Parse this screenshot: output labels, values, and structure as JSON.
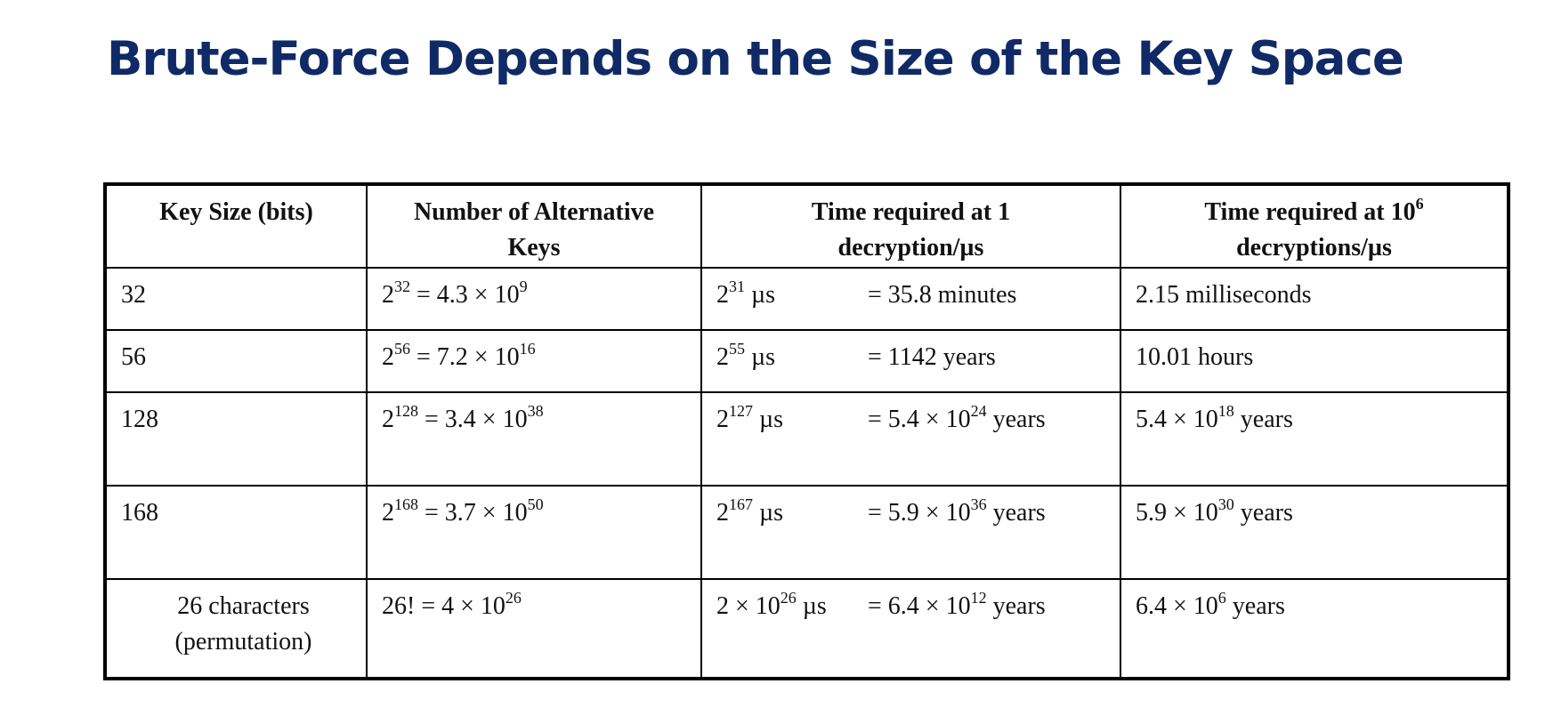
{
  "title": "Brute-Force Depends on the Size of the Key Space",
  "table": {
    "headers": [
      {
        "line1": "Key Size (bits)",
        "line2": ""
      },
      {
        "line1": "Number of Alternative",
        "line2": "Keys"
      },
      {
        "line1": "Time required at 1",
        "line2": "decryption/µs"
      },
      {
        "line1": "Time required at 10",
        "sup": "6",
        "line2": "decryptions/µs"
      }
    ],
    "rows": [
      {
        "key_size": "32",
        "alt_keys": {
          "base": "2",
          "exp": "32",
          "eq": " = 4.3 × 10",
          "eq_exp": "9"
        },
        "time1": {
          "base": "2",
          "exp": "31",
          "unit": " µs",
          "result": "= 35.8 minutes",
          "result_exp": "",
          "result_tail": ""
        },
        "time2": {
          "text": "2.15 milliseconds",
          "exp": "",
          "tail": ""
        }
      },
      {
        "key_size": "56",
        "alt_keys": {
          "base": "2",
          "exp": "56",
          "eq": " = 7.2 × 10",
          "eq_exp": "16"
        },
        "time1": {
          "base": "2",
          "exp": "55",
          "unit": " µs",
          "result": "= 1142 years",
          "result_exp": "",
          "result_tail": ""
        },
        "time2": {
          "text": "10.01 hours",
          "exp": "",
          "tail": ""
        }
      },
      {
        "key_size": "128",
        "alt_keys": {
          "base": "2",
          "exp": "128",
          "eq": " = 3.4 × 10",
          "eq_exp": "38"
        },
        "time1": {
          "base": "2",
          "exp": "127",
          "unit": " µs",
          "result": "= 5.4 × 10",
          "result_exp": "24",
          "result_tail": " years"
        },
        "time2": {
          "text": "5.4 × 10",
          "exp": "18",
          "tail": " years"
        }
      },
      {
        "key_size": "168",
        "alt_keys": {
          "base": "2",
          "exp": "168",
          "eq": " = 3.7 × 10",
          "eq_exp": "50"
        },
        "time1": {
          "base": "2",
          "exp": "167",
          "unit": " µs",
          "result": "= 5.9 × 10",
          "result_exp": "36",
          "result_tail": " years"
        },
        "time2": {
          "text": "5.9 × 10",
          "exp": "30",
          "tail": " years"
        }
      },
      {
        "key_size_line1": "26 characters",
        "key_size_line2": "(permutation)",
        "alt_keys": {
          "base": "26! = 4 × 10",
          "exp": "26"
        },
        "time1": {
          "base": "2 × 10",
          "exp": "26",
          "unit": " µs",
          "result": "= 6.4 × 10",
          "result_exp": "12",
          "result_tail": " years"
        },
        "time2": {
          "text": "6.4 × 10",
          "exp": "6",
          "tail": " years"
        }
      }
    ]
  }
}
